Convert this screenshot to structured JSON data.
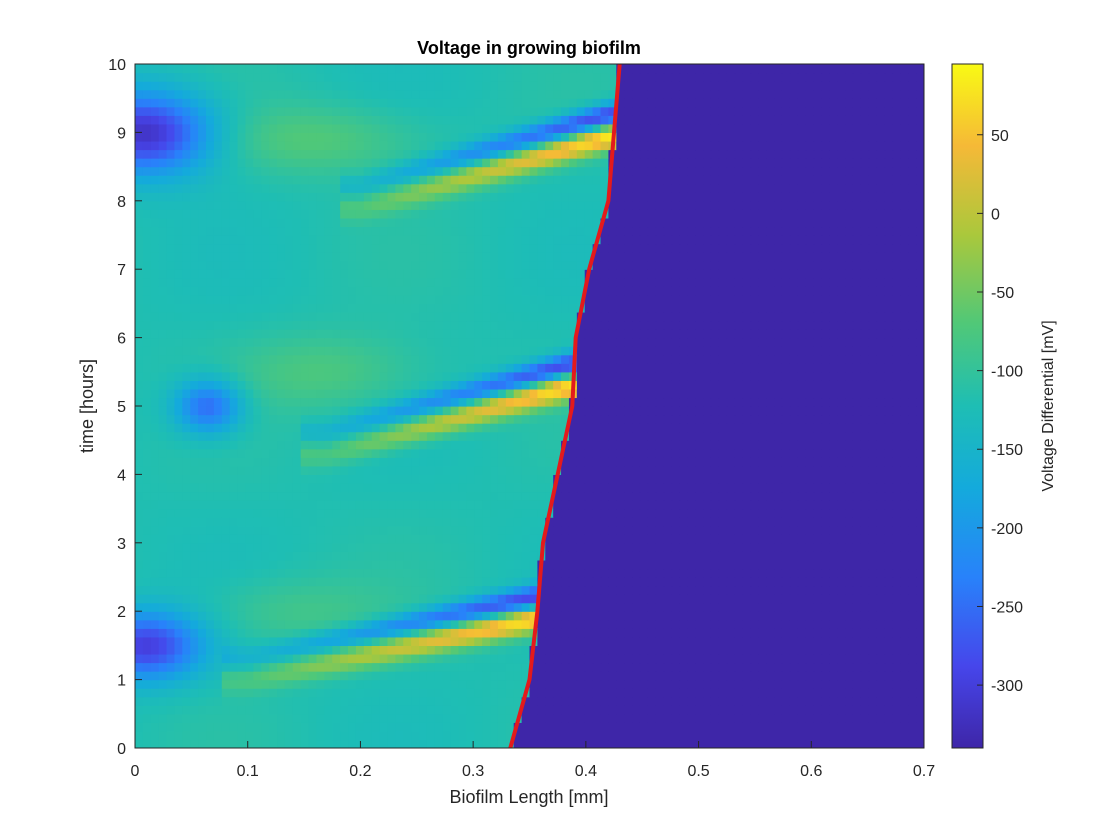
{
  "chart_data": {
    "type": "heatmap",
    "title": "Voltage in growing biofilm",
    "xlabel": "Biofilm Length [mm]",
    "ylabel": "time [hours]",
    "xlim": [
      0,
      0.7
    ],
    "ylim": [
      0,
      10
    ],
    "x_ticks": [
      "0",
      "0.1",
      "0.2",
      "0.3",
      "0.4",
      "0.5",
      "0.6",
      "0.7"
    ],
    "y_ticks": [
      "0",
      "1",
      "2",
      "3",
      "4",
      "5",
      "6",
      "7",
      "8",
      "9",
      "10"
    ],
    "grid": false,
    "colormap": "parula",
    "colorbar": {
      "label": "Voltage Differential [mV]",
      "range": [
        -340,
        95
      ],
      "ticks": [
        "50",
        "0",
        "-50",
        "-100",
        "-150",
        "-200",
        "-250",
        "-300"
      ],
      "tick_values": [
        50,
        0,
        -50,
        -100,
        -150,
        -200,
        -250,
        -300
      ]
    },
    "background_value_mV": -120,
    "outside_biofilm_value_mV": -340,
    "front_line": {
      "color": "#e31a1c",
      "x": [
        0.333,
        0.35,
        0.357,
        0.362,
        0.375,
        0.388,
        0.391,
        0.403,
        0.42,
        0.425,
        0.43
      ],
      "y": [
        0,
        1.0,
        2.0,
        3.0,
        4.0,
        5.0,
        6.0,
        7.0,
        8.0,
        9.0,
        10.0
      ]
    },
    "bands": [
      {
        "t_start": 1.0,
        "t_end": 1.9,
        "x_start": 0.1,
        "x_end": 0.355,
        "peak_mV": 90
      },
      {
        "t_start": 4.3,
        "t_end": 5.3,
        "x_start": 0.17,
        "x_end": 0.385,
        "peak_mV": 90
      },
      {
        "t_start": 7.9,
        "t_end": 8.95,
        "x_start": 0.2,
        "x_end": 0.42,
        "peak_mV": 90
      }
    ],
    "blobs": [
      {
        "x": 0.01,
        "t": 1.5,
        "rx": 0.05,
        "rt": 0.5,
        "value_mV": -300
      },
      {
        "x": 0.065,
        "t": 5.0,
        "rx": 0.03,
        "rt": 0.4,
        "value_mV": -260
      },
      {
        "x": 0.01,
        "t": 9.0,
        "rx": 0.06,
        "rt": 0.6,
        "value_mV": -320
      },
      {
        "x": 0.17,
        "t": 5.5,
        "rx": 0.08,
        "rt": 0.55,
        "value_mV": -75
      },
      {
        "x": 0.16,
        "t": 8.9,
        "rx": 0.09,
        "rt": 0.5,
        "value_mV": -70
      },
      {
        "x": 0.14,
        "t": 2.0,
        "rx": 0.08,
        "rt": 0.5,
        "value_mV": -85
      }
    ]
  }
}
